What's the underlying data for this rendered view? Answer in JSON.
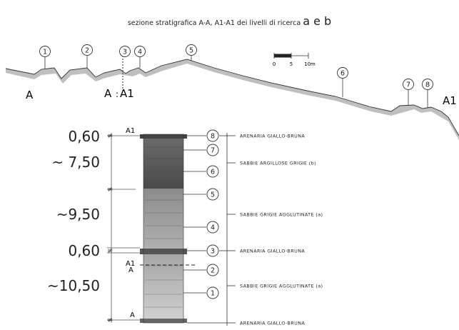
{
  "title": {
    "main": "sezione stratigrafica A-A, A1-A1 dei livelli di ricerca",
    "levels": "a e b"
  },
  "profile": {
    "section_markers": [
      "A",
      "A",
      "A1",
      "A1"
    ],
    "points": [
      "1",
      "2",
      "3",
      "4",
      "5",
      "6",
      "7",
      "8"
    ],
    "scale_bar": {
      "ticks": [
        "0",
        "5",
        "10m"
      ]
    }
  },
  "column": {
    "measurements": [
      "0,60",
      "~ 7,50",
      "~9,50",
      "0,60",
      "~10,50"
    ],
    "top_marker": "A1",
    "mid_markers": [
      "A1",
      "A"
    ],
    "bottom_marker": "A",
    "layer_numbers": [
      "8",
      "7",
      "6",
      "5",
      "4",
      "3",
      "2",
      "1"
    ],
    "formations": [
      "ARENARIA GIALLO-BRUNA",
      "SABBIE ARGILLOSE GRIGIE (b)",
      "SABBIE GRIGIE AGGLUTINATE (a)",
      "ARENARIA GIALLO-BRUNA",
      "SABBIE GRIGIE AGGLUTINATE (a)",
      "ARENARIA GIALLO-BRUNA"
    ]
  },
  "colors": {
    "ink": "#222222",
    "terrain": "#8a8a8a",
    "layer_dark": "#555555",
    "layer_mid": "#9a9a9a",
    "layer_light": "#c2c2c2"
  }
}
